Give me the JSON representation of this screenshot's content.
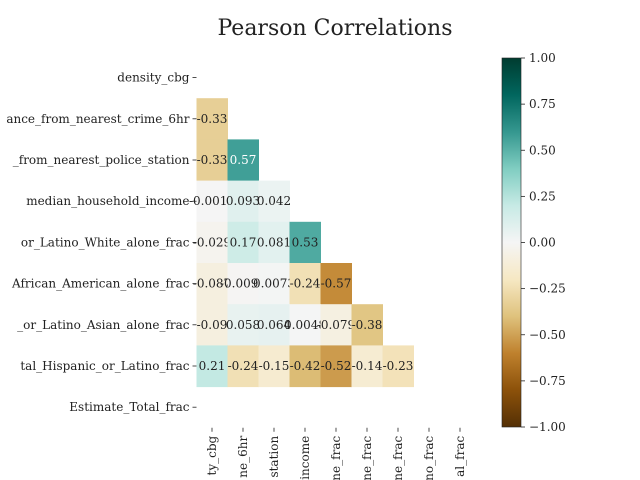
{
  "chart_data": {
    "type": "heatmap",
    "title": "Pearson Correlations",
    "row_labels": [
      "density_cbg",
      "ance_from_nearest_crime_6hr",
      "_from_nearest_police_station",
      "median_household_income",
      "or_Latino_White_alone_frac",
      "African_American_alone_frac",
      "_or_Latino_Asian_alone_frac",
      "tal_Hispanic_or_Latino_frac",
      "Estimate_Total_frac"
    ],
    "col_labels": [
      "ty_cbg",
      "ne_6hr",
      "station",
      "income",
      "ne_frac",
      "ne_frac",
      "ne_frac",
      "no_frac",
      "al_frac"
    ],
    "values": [
      [
        null,
        null,
        null,
        null,
        null,
        null,
        null,
        null,
        null
      ],
      [
        -0.33,
        null,
        null,
        null,
        null,
        null,
        null,
        null,
        null
      ],
      [
        -0.33,
        0.57,
        null,
        null,
        null,
        null,
        null,
        null,
        null
      ],
      [
        -0.0012,
        0.093,
        0.042,
        null,
        null,
        null,
        null,
        null,
        null
      ],
      [
        -0.029,
        0.17,
        0.081,
        0.53,
        null,
        null,
        null,
        null,
        null
      ],
      [
        -0.087,
        -0.0097,
        0.0073,
        -0.24,
        -0.57,
        null,
        null,
        null,
        null
      ],
      [
        -0.09,
        0.058,
        0.064,
        0.0048,
        -0.079,
        -0.38,
        null,
        null,
        null
      ],
      [
        0.21,
        -0.24,
        -0.15,
        -0.42,
        -0.52,
        -0.14,
        -0.23,
        null,
        null
      ],
      [
        null,
        null,
        null,
        null,
        null,
        null,
        null,
        null,
        null
      ]
    ],
    "cell_labels": [
      [
        null,
        null,
        null,
        null,
        null,
        null,
        null,
        null,
        null
      ],
      [
        "-0.33",
        null,
        null,
        null,
        null,
        null,
        null,
        null,
        null
      ],
      [
        "-0.33",
        "0.57",
        null,
        null,
        null,
        null,
        null,
        null,
        null
      ],
      [
        "-0.0012",
        "0.093",
        "0.042",
        null,
        null,
        null,
        null,
        null,
        null
      ],
      [
        "-0.029",
        "0.17",
        "0.081",
        "0.53",
        null,
        null,
        null,
        null,
        null
      ],
      [
        "-0.087",
        "-0.0097",
        "0.0073",
        "-0.24",
        "-0.57",
        null,
        null,
        null,
        null
      ],
      [
        "-0.09",
        "0.058",
        "0.064",
        "0.0048",
        "-0.079",
        "-0.38",
        null,
        null,
        null
      ],
      [
        "0.21",
        "-0.24",
        "-0.15",
        "-0.42",
        "-0.52",
        "-0.14",
        "-0.23",
        null,
        null
      ],
      [
        null,
        null,
        null,
        null,
        null,
        null,
        null,
        null,
        null
      ]
    ],
    "colormap": "BrBG",
    "vmin": -1.0,
    "vmax": 1.0,
    "colorbar_ticks": [
      "1.00",
      "0.75",
      "0.50",
      "0.25",
      "0.00",
      "−0.25",
      "−0.50",
      "−0.75",
      "−1.00"
    ],
    "colorbar_tick_values": [
      1.0,
      0.75,
      0.5,
      0.25,
      0.0,
      -0.25,
      -0.5,
      -0.75,
      -1.0
    ],
    "mask": "upper-triangle",
    "grid": false
  }
}
